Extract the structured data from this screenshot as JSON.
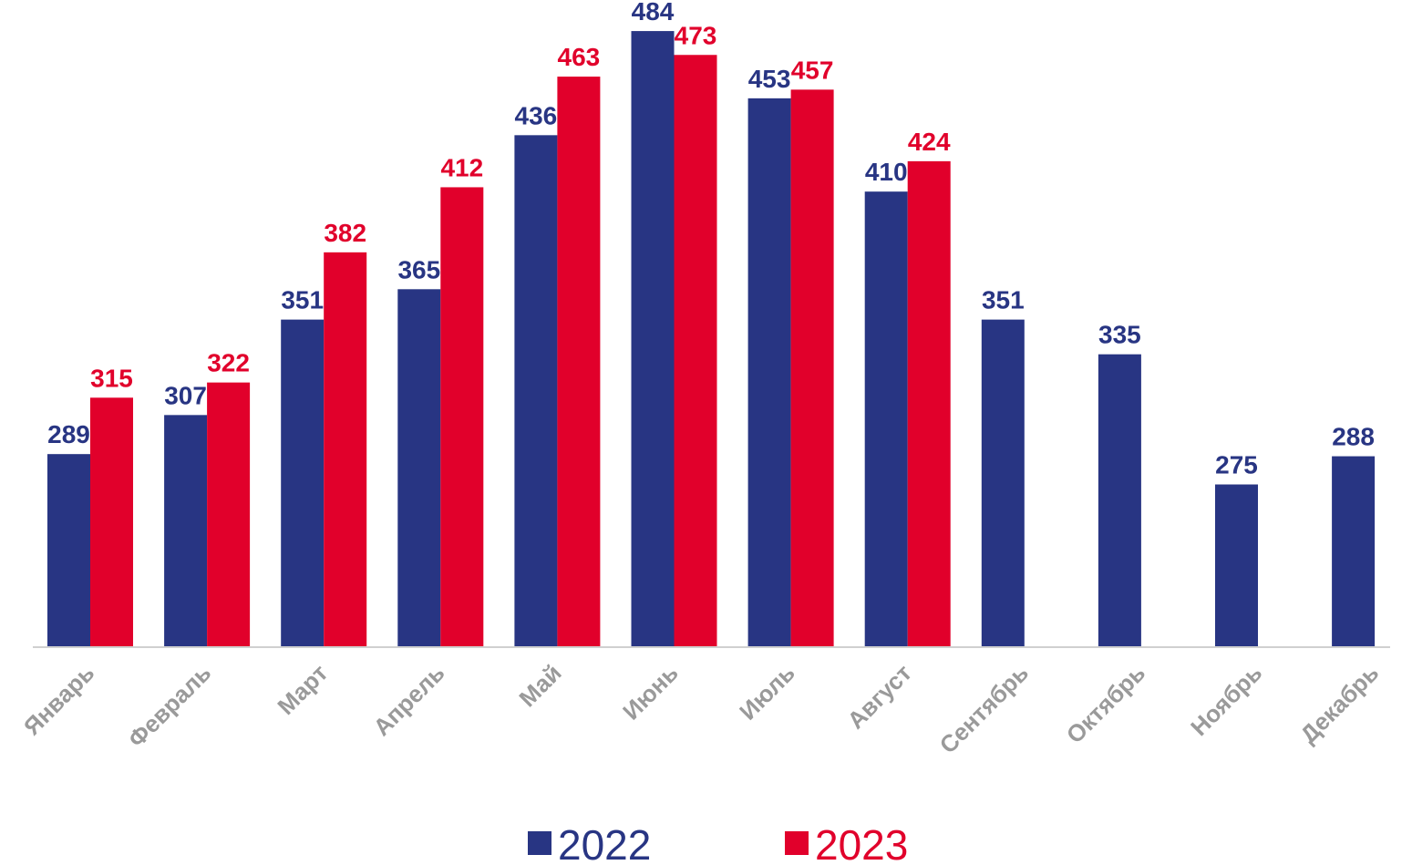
{
  "chart_data": {
    "type": "bar",
    "title": "",
    "xlabel": "",
    "ylabel": "",
    "ylim": [
      200,
      500
    ],
    "grid": false,
    "legend_position": "bottom",
    "categories": [
      "Январь",
      "Февраль",
      "Март",
      "Апрель",
      "Май",
      "Июнь",
      "Июль",
      "Август",
      "Сентябрь",
      "Октябрь",
      "Ноябрь",
      "Декабрь"
    ],
    "series": [
      {
        "name": "2022",
        "color": "#283583",
        "values": [
          289,
          307,
          351,
          365,
          436,
          484,
          453,
          410,
          351,
          335,
          275,
          288
        ]
      },
      {
        "name": "2023",
        "color": "#e1002b",
        "values": [
          315,
          322,
          382,
          412,
          463,
          473,
          457,
          424,
          null,
          null,
          null,
          null
        ]
      }
    ]
  }
}
